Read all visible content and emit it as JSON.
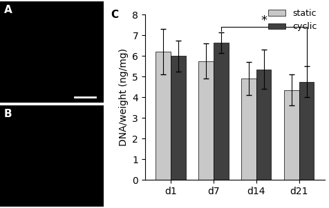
{
  "panel_labels": [
    "A",
    "B",
    "C"
  ],
  "chart_data": {
    "type": "bar",
    "y_label": "DNA/weight (ng/mg)",
    "categories": [
      "d1",
      "d7",
      "d14",
      "d21"
    ],
    "series": [
      {
        "name": "static",
        "color": "#c8c8c8",
        "values": [
          6.2,
          5.75,
          4.9,
          4.35
        ],
        "errors": [
          1.1,
          0.85,
          0.8,
          0.75
        ]
      },
      {
        "name": "cyclic",
        "color": "#404040",
        "values": [
          6.0,
          6.65,
          5.35,
          4.75
        ],
        "errors": [
          0.75,
          0.5,
          0.95,
          0.75
        ]
      }
    ],
    "ylim": [
      0,
      8
    ],
    "yticks": [
      0,
      1,
      2,
      3,
      4,
      5,
      6,
      7,
      8
    ],
    "legend": "upper right",
    "annotations": [
      {
        "text": "*",
        "from": "d7",
        "to": "d21",
        "series": "cyclic"
      }
    ]
  }
}
